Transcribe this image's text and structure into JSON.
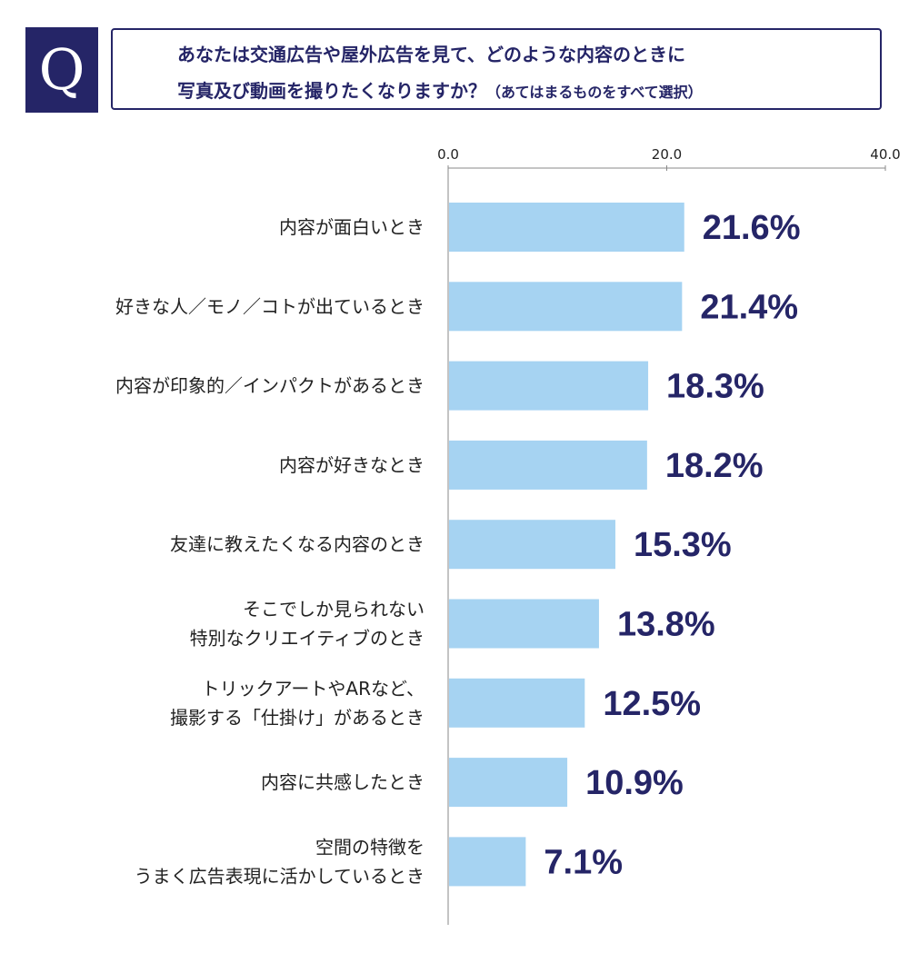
{
  "question": {
    "badge": "Q",
    "line1": "あなたは交通広告や屋外広告を見て、どのような内容のときに",
    "line2": "写真及び動画を撮りたくなりますか？",
    "note": "（あてはまるものをすべて選択）"
  },
  "chart_data": {
    "type": "bar",
    "orientation": "horizontal",
    "title": "",
    "xlabel": "",
    "ylabel": "",
    "xlim": [
      0,
      40
    ],
    "ticks": [
      0,
      20,
      40
    ],
    "tick_labels": [
      "0.0",
      "20.0",
      "40.0"
    ],
    "value_suffix": "%",
    "categories": [
      [
        "内容が面白いとき"
      ],
      [
        "好きな人／モノ／コトが出ているとき"
      ],
      [
        "内容が印象的／インパクトがあるとき"
      ],
      [
        "内容が好きなとき"
      ],
      [
        "友達に教えたくなる内容のとき"
      ],
      [
        "そこでしか見られない",
        "特別なクリエイティブのとき"
      ],
      [
        "トリックアートやARなど、",
        "撮影する「仕掛け」があるとき"
      ],
      [
        "内容に共感したとき"
      ],
      [
        "空間の特徴を",
        "うまく広告表現に活かしているとき"
      ]
    ],
    "values": [
      21.6,
      21.4,
      18.3,
      18.2,
      15.3,
      13.8,
      12.5,
      10.9,
      7.1
    ],
    "value_labels": [
      "21.6%",
      "21.4%",
      "18.3%",
      "18.2%",
      "15.3%",
      "13.8%",
      "12.5%",
      "10.9%",
      "7.1%"
    ],
    "colors": {
      "bar": "#a6d3f2",
      "value": "#252567",
      "axis": "#888888",
      "label": "#222222"
    }
  }
}
